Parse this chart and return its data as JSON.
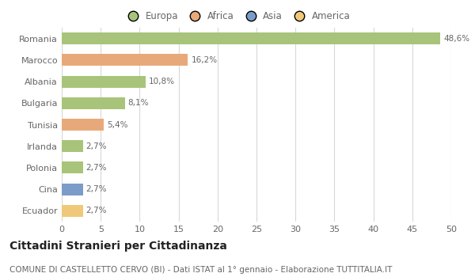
{
  "countries": [
    "Romania",
    "Marocco",
    "Albania",
    "Bulgaria",
    "Tunisia",
    "Irlanda",
    "Polonia",
    "Cina",
    "Ecuador"
  ],
  "values": [
    48.6,
    16.2,
    10.8,
    8.1,
    5.4,
    2.7,
    2.7,
    2.7,
    2.7
  ],
  "labels": [
    "48,6%",
    "16,2%",
    "10,8%",
    "8,1%",
    "5,4%",
    "2,7%",
    "2,7%",
    "2,7%",
    "2,7%"
  ],
  "bar_colors": [
    "#a8c47a",
    "#e8a97a",
    "#a8c47a",
    "#a8c47a",
    "#e8a97a",
    "#a8c47a",
    "#a8c47a",
    "#7b9cc8",
    "#f0c87a"
  ],
  "legend_labels": [
    "Europa",
    "Africa",
    "Asia",
    "America"
  ],
  "legend_colors": [
    "#a8c47a",
    "#e8a97a",
    "#7b9cc8",
    "#f0c87a"
  ],
  "title": "Cittadini Stranieri per Cittadinanza",
  "subtitle": "COMUNE DI CASTELLETTO CERVO (BI) - Dati ISTAT al 1° gennaio - Elaborazione TUTTITALIA.IT",
  "xlim": [
    0,
    50
  ],
  "xticks": [
    0,
    5,
    10,
    15,
    20,
    25,
    30,
    35,
    40,
    45,
    50
  ],
  "background_color": "#ffffff",
  "grid_color": "#d8d8d8",
  "bar_height": 0.55,
  "label_fontsize": 7.5,
  "ytick_fontsize": 8,
  "xtick_fontsize": 8,
  "legend_fontsize": 8.5,
  "title_fontsize": 10,
  "subtitle_fontsize": 7.5
}
